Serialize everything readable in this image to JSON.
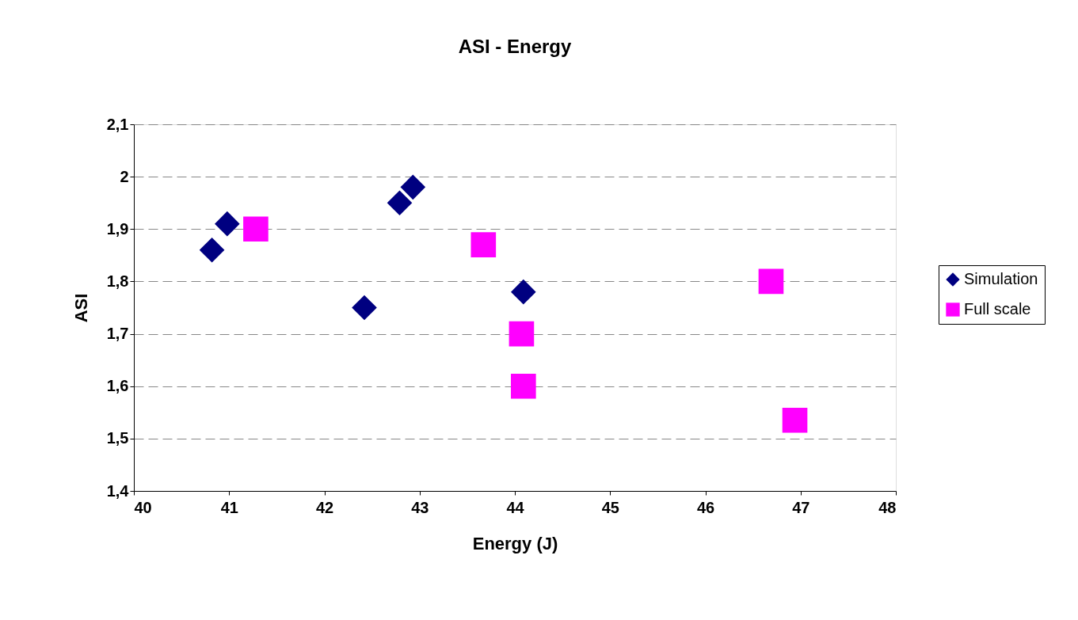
{
  "chart_data": {
    "type": "scatter",
    "title": "ASI - Energy",
    "xlabel": "Energy (J)",
    "ylabel": "ASI",
    "xlim": [
      40,
      48
    ],
    "xticks": [
      40,
      41,
      42,
      43,
      44,
      45,
      46,
      47,
      48
    ],
    "ylim": [
      1.4,
      2.1
    ],
    "yticks": [
      {
        "value": 1.4,
        "label": "1,4"
      },
      {
        "value": 1.5,
        "label": "1,5"
      },
      {
        "value": 1.6,
        "label": "1,6"
      },
      {
        "value": 1.7,
        "label": "1,7"
      },
      {
        "value": 1.8,
        "label": "1,8"
      },
      {
        "value": 1.9,
        "label": "1,9"
      },
      2,
      {
        "value": 2.1,
        "label": "2,1"
      }
    ],
    "grid": "y",
    "legend": "right",
    "series": [
      {
        "name": "Simulation",
        "color": "#000080",
        "marker": "diamond",
        "x": [
          40.82,
          40.98,
          42.42,
          42.79,
          42.93,
          44.09
        ],
        "values": [
          1.86,
          1.91,
          1.75,
          1.95,
          1.98,
          1.78
        ]
      },
      {
        "name": "Full scale",
        "color": "#ff00ff",
        "marker": "square",
        "x": [
          41.28,
          43.67,
          44.07,
          44.09,
          46.69,
          46.94
        ],
        "values": [
          1.9,
          1.87,
          1.7,
          1.6,
          1.8,
          1.535
        ]
      }
    ]
  }
}
